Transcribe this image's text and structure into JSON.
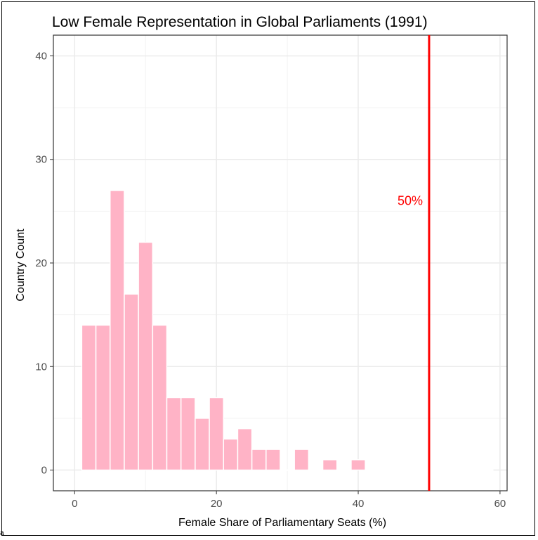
{
  "chart_data": {
    "type": "bar",
    "title": "Low Female Representation in Global Parliaments (1991)",
    "xlabel": "Female Share of Parliamentary Seats (%)",
    "ylabel": "Country Count",
    "xlim": [
      -3,
      61
    ],
    "ylim": [
      -2,
      42
    ],
    "x_ticks": [
      "0",
      "20",
      "40",
      "60"
    ],
    "y_ticks": [
      "0",
      "10",
      "20",
      "30",
      "40"
    ],
    "grid": true,
    "bin_width": 2,
    "bins": [
      {
        "start": 1,
        "value": 14
      },
      {
        "start": 3,
        "value": 14
      },
      {
        "start": 5,
        "value": 27
      },
      {
        "start": 7,
        "value": 17
      },
      {
        "start": 9,
        "value": 22
      },
      {
        "start": 11,
        "value": 14
      },
      {
        "start": 13,
        "value": 7
      },
      {
        "start": 15,
        "value": 7
      },
      {
        "start": 17,
        "value": 5
      },
      {
        "start": 19,
        "value": 7
      },
      {
        "start": 21,
        "value": 3
      },
      {
        "start": 23,
        "value": 4
      },
      {
        "start": 25,
        "value": 2
      },
      {
        "start": 27,
        "value": 2
      },
      {
        "start": 29,
        "value": 0
      },
      {
        "start": 31,
        "value": 2
      },
      {
        "start": 33,
        "value": 0
      },
      {
        "start": 35,
        "value": 1
      },
      {
        "start": 37,
        "value": 0
      },
      {
        "start": 39,
        "value": 1
      },
      {
        "start": 41,
        "value": 0
      },
      {
        "start": 43,
        "value": 0
      },
      {
        "start": 45,
        "value": 0
      },
      {
        "start": 47,
        "value": 0
      },
      {
        "start": 49,
        "value": 0
      },
      {
        "start": 51,
        "value": 0
      },
      {
        "start": 53,
        "value": 0
      },
      {
        "start": 55,
        "value": 0
      },
      {
        "start": 57,
        "value": 0
      }
    ],
    "reference_line": {
      "x": 50,
      "label": "50%",
      "label_y": 26,
      "color": "#ff0000"
    },
    "bar_color": "#ffb3c6"
  },
  "corner_mark": "a"
}
